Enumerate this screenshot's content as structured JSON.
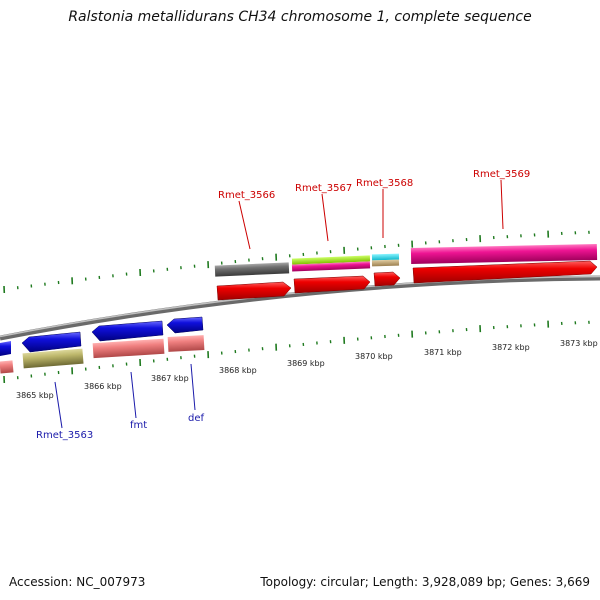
{
  "title": "Ralstonia metallidurans CH34 chromosome 1, complete sequence",
  "footer": {
    "accession": "Accession: NC_007973",
    "summary": "Topology: circular; Length: 3,928,089 bp; Genes: 3,669"
  },
  "ruler_labels": [
    "3865 kbp",
    "3866 kbp",
    "3867 kbp",
    "3868 kbp",
    "3869 kbp",
    "3870 kbp",
    "3871 kbp",
    "3872 kbp",
    "3873 kbp"
  ],
  "gene_labels_top": [
    "Rmet_3566",
    "Rmet_3567",
    "Rmet_3568",
    "Rmet_3569"
  ],
  "gene_labels_bottom": [
    "Rmet_3563",
    "fmt",
    "def"
  ],
  "colors": {
    "label_top": "#cc0000",
    "label_bottom": "#1a1aaa",
    "tick": "#1f7a1f",
    "backbone": "#808080",
    "red": "#ee0000",
    "blue": "#1010dd",
    "salmon": "#f08080",
    "khaki": "#bdb76b",
    "gray": "#707070",
    "magenta": "#ee1493",
    "lime": "#99dd22",
    "cyan": "#22ddee",
    "tan": "#c2a878"
  }
}
